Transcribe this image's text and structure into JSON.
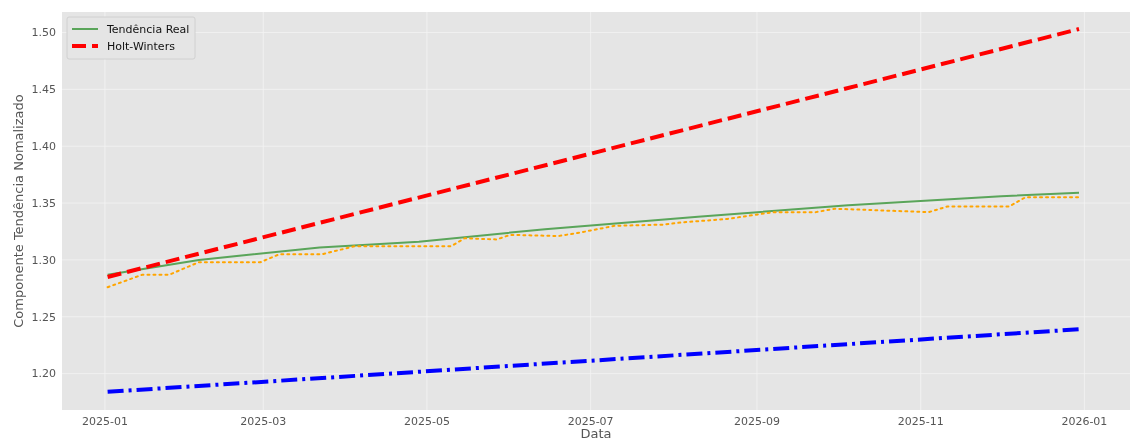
{
  "chart_data": {
    "type": "line",
    "xlabel": "Data",
    "ylabel": "Componente Tendência Nomalizado",
    "xlim": [
      "2024-12-16",
      "2026-01-18"
    ],
    "ylim": [
      1.168,
      1.518
    ],
    "xticks": [
      "2025-01",
      "2025-03",
      "2025-05",
      "2025-07",
      "2025-09",
      "2025-11",
      "2026-01"
    ],
    "yticks": [
      {
        "value": 1.2,
        "label": "1.20"
      },
      1.25,
      {
        "value": 1.3,
        "label": "1.30"
      },
      1.35,
      {
        "value": 1.4,
        "label": "1.40"
      },
      1.45,
      {
        "value": 1.5,
        "label": "1.50"
      }
    ],
    "grid": true,
    "legend": "top left",
    "series": [
      {
        "name": "Tendência Real",
        "color": "#5aa55a",
        "line_style": "solid",
        "x": [
          "2025-01-02",
          "2025-02-05",
          "2025-03-22",
          "2025-04-28",
          "2025-06-14",
          "2025-08-10",
          "2025-10-05",
          "2025-12-01",
          "2025-12-30"
        ],
        "values": [
          1.287,
          1.3,
          1.311,
          1.316,
          1.327,
          1.338,
          1.348,
          1.356,
          1.359
        ]
      },
      {
        "name": "Holt-Winters",
        "color": "#ff0000",
        "line_style": "dashed",
        "x": [
          "2025-01-02",
          "2025-12-30"
        ],
        "values": [
          1.285,
          1.503
        ]
      },
      {
        "color": "#0000ff",
        "line_style": "dashdot",
        "x": [
          "2025-01-02",
          "2025-12-30"
        ],
        "values": [
          1.184,
          1.239
        ]
      },
      {
        "color": "#ffa500",
        "line_style": "dotted",
        "x": [
          "2025-01-02",
          "2025-01-15",
          "2025-01-25",
          "2025-02-05",
          "2025-02-28",
          "2025-03-07",
          "2025-03-23",
          "2025-04-04",
          "2025-05-10",
          "2025-05-15",
          "2025-05-27",
          "2025-06-01",
          "2025-06-19",
          "2025-06-27",
          "2025-07-10",
          "2025-07-28",
          "2025-08-04",
          "2025-08-21",
          "2025-09-07",
          "2025-09-23",
          "2025-09-30",
          "2025-11-04",
          "2025-11-11",
          "2025-12-04",
          "2025-12-10",
          "2025-12-31"
        ],
        "values": [
          1.276,
          1.287,
          1.287,
          1.298,
          1.298,
          1.305,
          1.305,
          1.312,
          1.312,
          1.319,
          1.318,
          1.322,
          1.321,
          1.324,
          1.33,
          1.331,
          1.333,
          1.336,
          1.342,
          1.342,
          1.345,
          1.342,
          1.347,
          1.347,
          1.355,
          1.355
        ]
      }
    ]
  }
}
